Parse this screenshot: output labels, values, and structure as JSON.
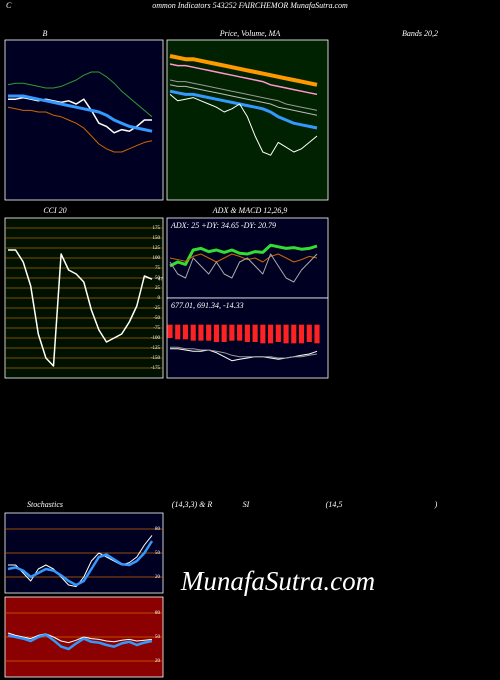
{
  "labels": {
    "c": "C",
    "header": "ommon  Indicators 543252  FAIRCHEMOR MunafaSutra.com",
    "bands": "Bands 20,2",
    "stoch": "Stochastics",
    "stoch_params": "(14,3,3) & R",
    "si": "SI",
    "rsi_params": "(14,5",
    "close_paren": ")",
    "watermark": "MunafaSutra.com"
  },
  "chart_data": [
    {
      "type": "line",
      "title": "B",
      "background": "#000022",
      "ylim": [
        0,
        100
      ],
      "series": [
        {
          "color": "#2e9e2e",
          "line_width": 1,
          "values": [
            72,
            73,
            73,
            72,
            71,
            70,
            70,
            71,
            73,
            75,
            78,
            80,
            80,
            77,
            73,
            68,
            64,
            60,
            56,
            52
          ]
        },
        {
          "color": "#ffffff",
          "line_width": 1.5,
          "values": [
            63,
            63,
            64,
            63,
            62,
            63,
            62,
            61,
            62,
            60,
            63,
            56,
            48,
            46,
            42,
            44,
            43,
            46,
            50,
            50
          ]
        },
        {
          "color": "#3399ff",
          "line_width": 3,
          "values": [
            65,
            65,
            65,
            64,
            63,
            62,
            61,
            60,
            59,
            58,
            57,
            56,
            55,
            53,
            50,
            48,
            46,
            45,
            44,
            43
          ]
        },
        {
          "color": "#cc6600",
          "line_width": 1,
          "values": [
            58,
            57,
            56,
            56,
            55,
            55,
            53,
            52,
            50,
            48,
            45,
            40,
            35,
            32,
            30,
            30,
            32,
            34,
            36,
            37
          ]
        }
      ]
    },
    {
      "type": "line",
      "title": "Price, Volume, MA",
      "background": "#002200",
      "ylim": [
        0,
        100
      ],
      "series": [
        {
          "color": "#ff9900",
          "line_width": 4,
          "values": [
            90,
            89,
            88,
            88,
            87,
            86,
            85,
            84,
            83,
            82,
            81,
            80,
            79,
            78,
            77,
            76,
            75,
            74,
            73,
            72
          ]
        },
        {
          "color": "#ff99cc",
          "line_width": 1.5,
          "values": [
            85,
            84,
            84,
            83,
            82,
            81,
            80,
            79,
            78,
            77,
            76,
            75,
            74,
            72,
            71,
            70,
            69,
            68,
            67,
            66
          ]
        },
        {
          "color": "#999999",
          "line_width": 1,
          "values": [
            75,
            74,
            74,
            73,
            72,
            71,
            70,
            69,
            68,
            67,
            66,
            65,
            64,
            63,
            62,
            60,
            59,
            58,
            57,
            56
          ]
        },
        {
          "color": "#bbbbbb",
          "line_width": 1,
          "values": [
            72,
            71,
            71,
            70,
            69,
            68,
            67,
            66,
            65,
            64,
            63,
            62,
            61,
            60,
            58,
            57,
            56,
            55,
            54,
            53
          ]
        },
        {
          "color": "#3399ff",
          "line_width": 3,
          "values": [
            68,
            67,
            66,
            66,
            65,
            64,
            63,
            62,
            61,
            60,
            59,
            58,
            57,
            55,
            52,
            50,
            48,
            47,
            46,
            45
          ]
        },
        {
          "color": "#ffffff",
          "line_width": 1,
          "values": [
            66,
            62,
            63,
            64,
            62,
            60,
            58,
            55,
            57,
            60,
            52,
            40,
            30,
            28,
            36,
            33,
            30,
            32,
            36,
            40
          ]
        }
      ]
    },
    {
      "type": "line",
      "title": "CCI 20",
      "background": "#001100",
      "ylim": [
        -200,
        200
      ],
      "yticks": [
        175,
        150,
        125,
        100,
        75,
        50,
        25,
        0,
        -25,
        -50,
        -75,
        -100,
        -125,
        -150,
        -175
      ],
      "grid": true,
      "grid_color": "#aa6600",
      "last_value_label": true,
      "series": [
        {
          "color": "#ffffff",
          "line_width": 1.5,
          "values": [
            120,
            120,
            90,
            30,
            -90,
            -150,
            -170,
            110,
            70,
            60,
            40,
            -30,
            -80,
            -110,
            -100,
            -90,
            -60,
            -20,
            55,
            47
          ]
        }
      ]
    },
    {
      "type": "line",
      "title": "ADX  & MACD 12,26,9",
      "label": "ADX: 25 +DY: 34.65 -DY: 20.79",
      "background": "#000022",
      "ylim": [
        0,
        100
      ],
      "series": [
        {
          "color": "#33dd33",
          "line_width": 3,
          "values": [
            40,
            45,
            42,
            60,
            62,
            58,
            60,
            57,
            60,
            56,
            55,
            58,
            57,
            66,
            64,
            62,
            63,
            61,
            62,
            65
          ]
        },
        {
          "color": "#cc6600",
          "line_width": 1,
          "values": [
            50,
            48,
            46,
            52,
            55,
            50,
            45,
            50,
            55,
            52,
            48,
            50,
            45,
            52,
            55,
            50,
            45,
            48,
            52,
            50
          ]
        },
        {
          "color": "#aaaaaa",
          "line_width": 1,
          "values": [
            45,
            30,
            25,
            50,
            40,
            30,
            45,
            30,
            25,
            45,
            50,
            40,
            30,
            55,
            40,
            25,
            20,
            35,
            45,
            55
          ]
        }
      ]
    },
    {
      "type": "macd",
      "label": "677.01, 691.34, -14.33",
      "background": "#000022",
      "ylim": [
        -40,
        20
      ],
      "bar_color": "#ff2222",
      "bars": [
        -10,
        -11,
        -11,
        -12,
        -12,
        -12,
        -13,
        -13,
        -12,
        -12,
        -13,
        -13,
        -14,
        -14,
        -13,
        -14,
        -14,
        -14,
        -13,
        -14
      ],
      "series": [
        {
          "color": "#ffffff",
          "line_width": 1,
          "values": [
            -18,
            -18,
            -19,
            -20,
            -20,
            -19,
            -21,
            -24,
            -27,
            -26,
            -25,
            -24,
            -24,
            -25,
            -26,
            -25,
            -24,
            -23,
            -22,
            -20
          ]
        },
        {
          "color": "#999999",
          "line_width": 1,
          "values": [
            -17,
            -17,
            -18,
            -18,
            -19,
            -19,
            -20,
            -21,
            -23,
            -24,
            -24,
            -24,
            -24,
            -24,
            -25,
            -25,
            -24,
            -24,
            -23,
            -22
          ]
        }
      ]
    },
    {
      "type": "line",
      "background": "#000022",
      "ylim": [
        0,
        100
      ],
      "yticks": [
        80,
        50,
        20
      ],
      "grid": true,
      "grid_color": "#cc6600",
      "series": [
        {
          "color": "#ffffff",
          "line_width": 1,
          "values": [
            35,
            35,
            25,
            15,
            30,
            35,
            30,
            20,
            10,
            8,
            20,
            40,
            50,
            45,
            40,
            35,
            38,
            45,
            60,
            72
          ]
        },
        {
          "color": "#3399ff",
          "line_width": 2.5,
          "values": [
            30,
            32,
            28,
            20,
            25,
            30,
            28,
            22,
            15,
            10,
            15,
            30,
            45,
            48,
            42,
            36,
            35,
            40,
            50,
            65
          ]
        }
      ]
    },
    {
      "type": "line",
      "background": "#8b0000",
      "ylim": [
        0,
        100
      ],
      "yticks": [
        80,
        50,
        20
      ],
      "grid": true,
      "grid_color": "#cc6600",
      "series": [
        {
          "color": "#ffffff",
          "line_width": 1,
          "values": [
            55,
            52,
            50,
            48,
            52,
            54,
            50,
            45,
            43,
            46,
            50,
            48,
            47,
            45,
            44,
            46,
            47,
            45,
            46,
            47
          ]
        },
        {
          "color": "#3399ff",
          "line_width": 2.5,
          "values": [
            52,
            50,
            48,
            45,
            50,
            53,
            46,
            38,
            35,
            42,
            48,
            44,
            43,
            40,
            38,
            42,
            44,
            40,
            43,
            45
          ]
        }
      ]
    }
  ]
}
